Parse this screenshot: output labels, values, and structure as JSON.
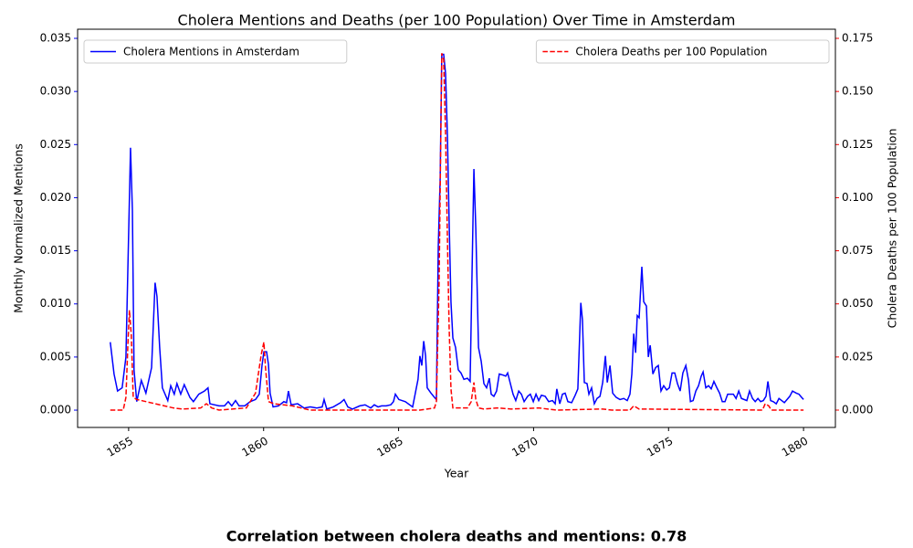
{
  "chart_data": {
    "type": "line",
    "title": "Cholera Mentions and Deaths (per 100 Population) Over Time in Amsterdam",
    "xlabel": "Year",
    "ylabel": "Monthly Normalized Mentions",
    "y2label": "Cholera Deaths per 100 Population",
    "annotation": "Correlation between cholera deaths and mentions: 0.78",
    "xlim": [
      1853.11,
      1881.18
    ],
    "xticks": [
      1855,
      1860,
      1865,
      1870,
      1875,
      1880
    ],
    "ylim": [
      -0.00163,
      0.03586
    ],
    "yticks": [
      {
        "value": 0,
        "label": "0.000"
      },
      {
        "value": 0.005,
        "label": "0.005"
      },
      {
        "value": 0.01,
        "label": "0.010"
      },
      {
        "value": 0.015,
        "label": "0.015"
      },
      {
        "value": 0.02,
        "label": "0.020"
      },
      {
        "value": 0.025,
        "label": "0.025"
      },
      {
        "value": 0.03,
        "label": "0.030"
      },
      {
        "value": 0.035,
        "label": "0.035"
      }
    ],
    "y2lim": [
      -0.00817,
      0.1793
    ],
    "y2ticks": [
      {
        "value": 0,
        "label": "0.000"
      },
      {
        "value": 0.025,
        "label": "0.025"
      },
      {
        "value": 0.05,
        "label": "0.050"
      },
      {
        "value": 0.075,
        "label": "0.075"
      },
      {
        "value": 0.1,
        "label": "0.100"
      },
      {
        "value": 0.125,
        "label": "0.125"
      },
      {
        "value": 0.15,
        "label": "0.150"
      },
      {
        "value": 0.175,
        "label": "0.175"
      }
    ],
    "series": [
      {
        "name": "Cholera Mentions in Amsterdam",
        "color": "#0000ff",
        "linestyle": "solid",
        "legend": "upper left",
        "axis": "y",
        "x": [
          1854.32,
          1854.46,
          1854.59,
          1854.76,
          1854.9,
          1855.07,
          1855.14,
          1855.2,
          1855.3,
          1855.47,
          1855.64,
          1855.85,
          1855.98,
          1856.05,
          1856.15,
          1856.25,
          1856.45,
          1856.56,
          1856.69,
          1856.79,
          1856.93,
          1857.06,
          1857.27,
          1857.4,
          1857.6,
          1857.81,
          1857.94,
          1858.01,
          1858.35,
          1858.55,
          1858.69,
          1858.82,
          1858.96,
          1859.09,
          1859.3,
          1859.5,
          1859.7,
          1859.84,
          1859.94,
          1860.01,
          1860.11,
          1860.18,
          1860.24,
          1860.35,
          1860.55,
          1860.75,
          1860.85,
          1860.92,
          1861.02,
          1861.26,
          1861.5,
          1861.73,
          1861.97,
          1862.17,
          1862.24,
          1862.34,
          1862.58,
          1862.85,
          1862.98,
          1863.12,
          1863.29,
          1863.56,
          1863.76,
          1863.97,
          1864.1,
          1864.24,
          1864.37,
          1864.54,
          1864.71,
          1864.81,
          1864.88,
          1865.01,
          1865.25,
          1865.52,
          1865.62,
          1865.72,
          1865.79,
          1865.86,
          1865.93,
          1866.0,
          1866.06,
          1866.2,
          1866.33,
          1866.4,
          1866.47,
          1866.54,
          1866.6,
          1866.67,
          1866.74,
          1866.81,
          1866.87,
          1866.94,
          1867.01,
          1867.11,
          1867.21,
          1867.31,
          1867.42,
          1867.55,
          1867.65,
          1867.72,
          1867.79,
          1867.86,
          1867.96,
          1868.06,
          1868.16,
          1868.26,
          1868.36,
          1868.43,
          1868.53,
          1868.63,
          1868.73,
          1868.87,
          1868.97,
          1869.04,
          1869.14,
          1869.24,
          1869.34,
          1869.45,
          1869.55,
          1869.65,
          1869.78,
          1869.88,
          1869.99,
          1870.09,
          1870.19,
          1870.29,
          1870.43,
          1870.56,
          1870.7,
          1870.8,
          1870.86,
          1870.97,
          1871.07,
          1871.17,
          1871.27,
          1871.41,
          1871.54,
          1871.64,
          1871.75,
          1871.81,
          1871.88,
          1871.98,
          1872.05,
          1872.15,
          1872.25,
          1872.35,
          1872.46,
          1872.56,
          1872.66,
          1872.73,
          1872.83,
          1872.93,
          1873.06,
          1873.2,
          1873.34,
          1873.47,
          1873.57,
          1873.64,
          1873.71,
          1873.78,
          1873.84,
          1873.91,
          1874.01,
          1874.08,
          1874.18,
          1874.25,
          1874.32,
          1874.42,
          1874.52,
          1874.62,
          1874.72,
          1874.82,
          1874.93,
          1875.03,
          1875.13,
          1875.23,
          1875.33,
          1875.43,
          1875.53,
          1875.64,
          1875.74,
          1875.81,
          1875.91,
          1876.01,
          1876.11,
          1876.21,
          1876.28,
          1876.38,
          1876.48,
          1876.58,
          1876.68,
          1876.79,
          1876.89,
          1876.99,
          1877.09,
          1877.19,
          1877.4,
          1877.5,
          1877.6,
          1877.7,
          1877.9,
          1878.0,
          1878.11,
          1878.21,
          1878.31,
          1878.41,
          1878.51,
          1878.61,
          1878.68,
          1878.78,
          1878.88,
          1878.99,
          1879.09,
          1879.19,
          1879.29,
          1879.39,
          1879.49,
          1879.59,
          1879.73,
          1879.83,
          1879.93,
          1880.0
        ],
        "values": [
          0.0064,
          0.0034,
          0.0018,
          0.0021,
          0.005,
          0.0247,
          0.0188,
          0.0038,
          0.0008,
          0.0028,
          0.0016,
          0.004,
          0.012,
          0.0107,
          0.0059,
          0.0021,
          0.0009,
          0.0023,
          0.0015,
          0.0025,
          0.0015,
          0.0024,
          0.0012,
          0.0008,
          0.0015,
          0.0018,
          0.0021,
          0.0006,
          0.0004,
          0.0004,
          0.0008,
          0.0004,
          0.0009,
          0.0004,
          0.0004,
          0.0008,
          0.001,
          0.0015,
          0.0042,
          0.0055,
          0.0055,
          0.0043,
          0.0016,
          0.0003,
          0.0004,
          0.0008,
          0.0007,
          0.0018,
          0.0005,
          0.0006,
          0.0002,
          0.0003,
          0.0002,
          0.0003,
          0.001,
          0.0001,
          0.0003,
          0.0007,
          0.001,
          0.0003,
          0.0001,
          0.0004,
          0.0005,
          0.0002,
          0.0005,
          0.0003,
          0.0004,
          0.0004,
          0.0005,
          0.0008,
          0.0015,
          0.001,
          0.0008,
          0.0003,
          0.0016,
          0.0029,
          0.0051,
          0.0042,
          0.0065,
          0.0051,
          0.0021,
          0.0016,
          0.0012,
          0.001,
          0.0154,
          0.0218,
          0.0335,
          0.0335,
          0.0317,
          0.0257,
          0.018,
          0.0102,
          0.0068,
          0.0059,
          0.0038,
          0.0035,
          0.0029,
          0.003,
          0.0027,
          0.0128,
          0.0227,
          0.0171,
          0.0059,
          0.0046,
          0.0025,
          0.0021,
          0.003,
          0.0015,
          0.0013,
          0.0018,
          0.0034,
          0.0033,
          0.0032,
          0.0035,
          0.0025,
          0.0015,
          0.0009,
          0.0018,
          0.0015,
          0.0008,
          0.0013,
          0.0015,
          0.0008,
          0.0015,
          0.0009,
          0.0014,
          0.0013,
          0.0008,
          0.0009,
          0.0006,
          0.002,
          0.0006,
          0.0015,
          0.0016,
          0.0008,
          0.0007,
          0.0014,
          0.002,
          0.0101,
          0.0085,
          0.0026,
          0.0025,
          0.0015,
          0.0021,
          0.0006,
          0.0011,
          0.0013,
          0.0026,
          0.0051,
          0.0026,
          0.0042,
          0.0016,
          0.0012,
          0.001,
          0.0011,
          0.0009,
          0.0015,
          0.0034,
          0.0072,
          0.0054,
          0.0089,
          0.0087,
          0.0135,
          0.0102,
          0.0098,
          0.005,
          0.0061,
          0.0034,
          0.004,
          0.0042,
          0.0018,
          0.0023,
          0.0019,
          0.0021,
          0.0035,
          0.0035,
          0.0025,
          0.0018,
          0.0035,
          0.0042,
          0.0028,
          0.0008,
          0.0009,
          0.0018,
          0.0023,
          0.0032,
          0.0036,
          0.0021,
          0.0023,
          0.002,
          0.0027,
          0.0021,
          0.0016,
          0.0008,
          0.0008,
          0.0015,
          0.0015,
          0.0011,
          0.0018,
          0.0011,
          0.0009,
          0.0018,
          0.0011,
          0.0008,
          0.0011,
          0.0008,
          0.0009,
          0.0013,
          0.0027,
          0.0009,
          0.0008,
          0.0006,
          0.0011,
          0.0009,
          0.0007,
          0.001,
          0.0013,
          0.0018,
          0.0016,
          0.0015,
          0.0012,
          0.001
        ]
      },
      {
        "name": "Cholera Deaths per 100 Population",
        "color": "#ff0000",
        "linestyle": "dashed",
        "legend": "upper right",
        "axis": "y2",
        "x": [
          1854.32,
          1854.8,
          1854.9,
          1854.97,
          1855.03,
          1855.1,
          1855.17,
          1855.3,
          1855.64,
          1855.98,
          1856.32,
          1856.66,
          1857.0,
          1857.67,
          1857.88,
          1858.08,
          1858.35,
          1859.36,
          1859.7,
          1859.91,
          1860.01,
          1860.07,
          1860.18,
          1860.38,
          1861.06,
          1861.39,
          1861.73,
          1865.79,
          1866.33,
          1866.4,
          1866.5,
          1866.6,
          1866.67,
          1866.74,
          1866.81,
          1866.87,
          1866.94,
          1867.01,
          1867.55,
          1867.69,
          1867.79,
          1867.86,
          1867.96,
          1868.16,
          1868.67,
          1869.17,
          1870.19,
          1870.86,
          1872.56,
          1872.9,
          1873.57,
          1873.71,
          1873.91,
          1878.48,
          1878.58,
          1878.71,
          1878.81,
          1880.0
        ],
        "values": [
          0,
          0,
          0.006,
          0.03,
          0.047,
          0.035,
          0.006,
          0.005,
          0.004,
          0.003,
          0.002,
          0.001,
          0.0005,
          0.001,
          0.003,
          0.001,
          0,
          0.001,
          0.008,
          0.026,
          0.032,
          0.02,
          0.004,
          0.003,
          0.002,
          0.001,
          0,
          0,
          0.001,
          0.004,
          0.06,
          0.168,
          0.165,
          0.13,
          0.08,
          0.04,
          0.01,
          0.001,
          0.001,
          0.004,
          0.013,
          0.005,
          0.001,
          0.0005,
          0.001,
          0.0005,
          0.001,
          0,
          0.0005,
          0,
          0,
          0.002,
          0.0005,
          0,
          0.003,
          0.002,
          0,
          0
        ]
      }
    ]
  }
}
